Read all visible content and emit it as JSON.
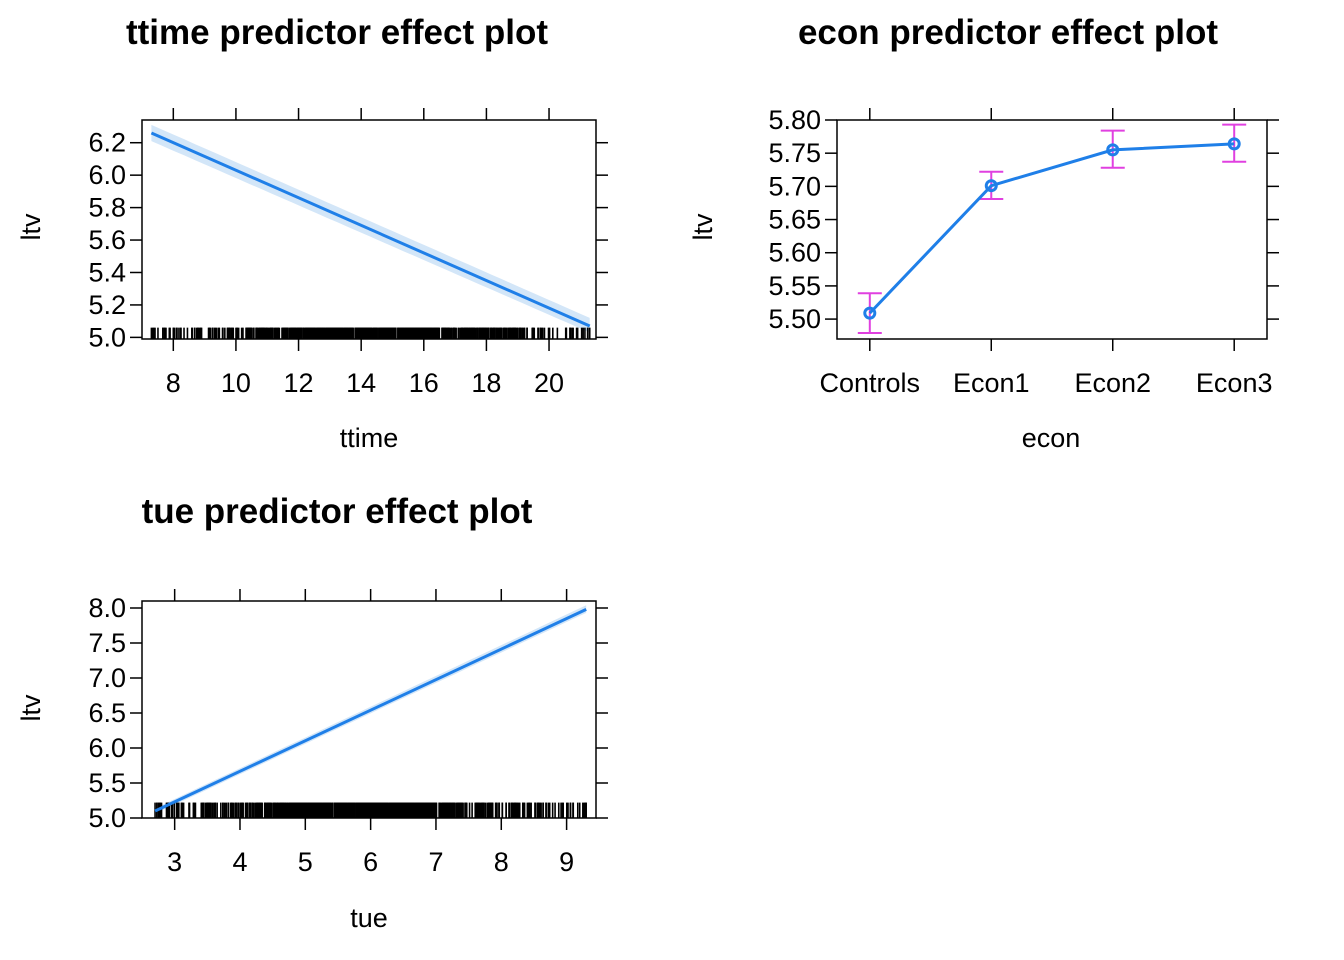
{
  "chart_data": [
    {
      "type": "line",
      "title": "ttime predictor effect plot",
      "xlabel": "ttime",
      "ylabel": "ltv",
      "xlim": [
        7.0,
        21.5
      ],
      "ylim": [
        4.99,
        6.34
      ],
      "xticks": [
        8,
        10,
        12,
        14,
        16,
        18,
        20
      ],
      "yticks": [
        5.0,
        5.2,
        5.4,
        5.6,
        5.8,
        6.0,
        6.2
      ],
      "ytick_labels": [
        "5.0",
        "5.2",
        "5.4",
        "5.6",
        "5.8",
        "6.0",
        "6.2"
      ],
      "x": [
        7.3,
        21.3
      ],
      "y": [
        6.26,
        5.07
      ],
      "lower": [
        6.21,
        5.03
      ],
      "upper": [
        6.31,
        5.12
      ],
      "rug_range": [
        7.3,
        21.3
      ],
      "rug_height": 5.06,
      "colors": {
        "line": "#1f7fe8",
        "band": "#d3e6f8",
        "rug": "#000000"
      }
    },
    {
      "type": "line",
      "title": "econ predictor effect plot",
      "xlabel": "econ",
      "ylabel": "ltv",
      "categories": [
        "Controls",
        "Econ1",
        "Econ2",
        "Econ3"
      ],
      "ylim": [
        5.47,
        5.8
      ],
      "yticks": [
        5.5,
        5.55,
        5.6,
        5.65,
        5.7,
        5.75,
        5.8
      ],
      "ytick_labels": [
        "5.50",
        "5.55",
        "5.60",
        "5.65",
        "5.70",
        "5.75",
        "5.80"
      ],
      "values": [
        5.509,
        5.701,
        5.755,
        5.764
      ],
      "lower": [
        5.479,
        5.681,
        5.728,
        5.737
      ],
      "upper": [
        5.539,
        5.722,
        5.784,
        5.793
      ],
      "colors": {
        "line": "#1f7fe8",
        "errorbar": "#e040e0"
      }
    },
    {
      "type": "line",
      "title": "tue predictor effect plot",
      "xlabel": "tue",
      "ylabel": "ltv",
      "xlim": [
        2.5,
        9.45
      ],
      "ylim": [
        5.0,
        8.1
      ],
      "xticks": [
        3,
        4,
        5,
        6,
        7,
        8,
        9
      ],
      "yticks": [
        5.0,
        5.5,
        6.0,
        6.5,
        7.0,
        7.5,
        8.0
      ],
      "ytick_labels": [
        "5.0",
        "5.5",
        "6.0",
        "6.5",
        "7.0",
        "7.5",
        "8.0"
      ],
      "x": [
        2.7,
        9.3
      ],
      "y": [
        5.1,
        7.98
      ],
      "lower": [
        5.06,
        7.93
      ],
      "upper": [
        5.14,
        8.04
      ],
      "rug_range": [
        2.7,
        9.3
      ],
      "rug_height": 5.22,
      "colors": {
        "line": "#1f7fe8",
        "band": "#d3e6f8",
        "rug": "#000000"
      }
    }
  ]
}
